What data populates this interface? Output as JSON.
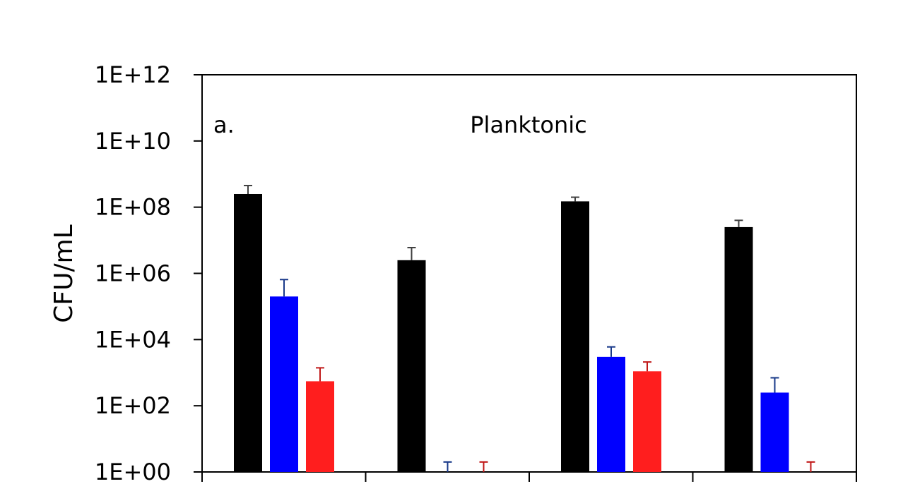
{
  "chart_data": {
    "type": "bar",
    "panel_label": "a.",
    "title": "Planktonic",
    "xlabel": "",
    "ylabel": "CFU/mL",
    "yscale": "log10",
    "ylim": [
      1,
      1000000000000
    ],
    "yticks": [
      1,
      100,
      10000,
      1000000,
      100000000,
      10000000000,
      1000000000000
    ],
    "ytick_labels": [
      "1E+00",
      "1E+02",
      "1E+04",
      "1E+06",
      "1E+08",
      "1E+10",
      "1E+12"
    ],
    "groups": 4,
    "grid": false,
    "legend": "none",
    "series": [
      {
        "color": "#000000",
        "values": [
          250000000,
          2500000,
          150000000,
          25000000
        ],
        "error_upper": [
          450000000,
          6000000,
          200000000,
          40000000
        ]
      },
      {
        "color": "#0000ff",
        "values": [
          200000,
          1,
          3000,
          250
        ],
        "error_upper": [
          650000,
          2,
          6000,
          700
        ]
      },
      {
        "color": "#ff1e1e",
        "values": [
          550,
          1,
          1100,
          1
        ],
        "error_upper": [
          1400,
          2,
          2100,
          2
        ]
      }
    ]
  }
}
